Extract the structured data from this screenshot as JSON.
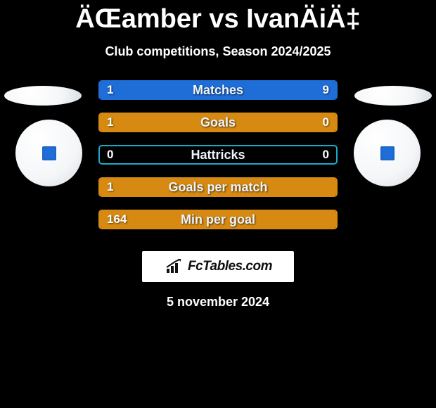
{
  "title": "ÄŒamber vs IvanÄiÄ‡",
  "subtitle": "Club competitions, Season 2024/2025",
  "brand": "FcTables.com",
  "date": "5 november 2024",
  "players": {
    "left": {
      "badge_color": "#1f6dd6"
    },
    "right": {
      "badge_color": "#1f6dd6"
    }
  },
  "colors": {
    "blue": "#1f6dd6",
    "cyan": "#1aa9c9",
    "orange": "#d78a12",
    "white": "#ffffff",
    "black": "#000000"
  },
  "rows": [
    {
      "metric": "Matches",
      "left": "1",
      "right": "9",
      "left_pct": 18,
      "right_pct": 82,
      "style": "blue"
    },
    {
      "metric": "Goals",
      "left": "1",
      "right": "0",
      "left_pct": 78,
      "right_pct": 22,
      "style": "orange"
    },
    {
      "metric": "Hattricks",
      "left": "0",
      "right": "0",
      "left_pct": 0,
      "right_pct": 0,
      "style": "cyan"
    },
    {
      "metric": "Goals per match",
      "left": "1",
      "right": "",
      "left_pct": 100,
      "right_pct": 0,
      "style": "orange"
    },
    {
      "metric": "Min per goal",
      "left": "164",
      "right": "",
      "left_pct": 100,
      "right_pct": 0,
      "style": "orange"
    }
  ]
}
